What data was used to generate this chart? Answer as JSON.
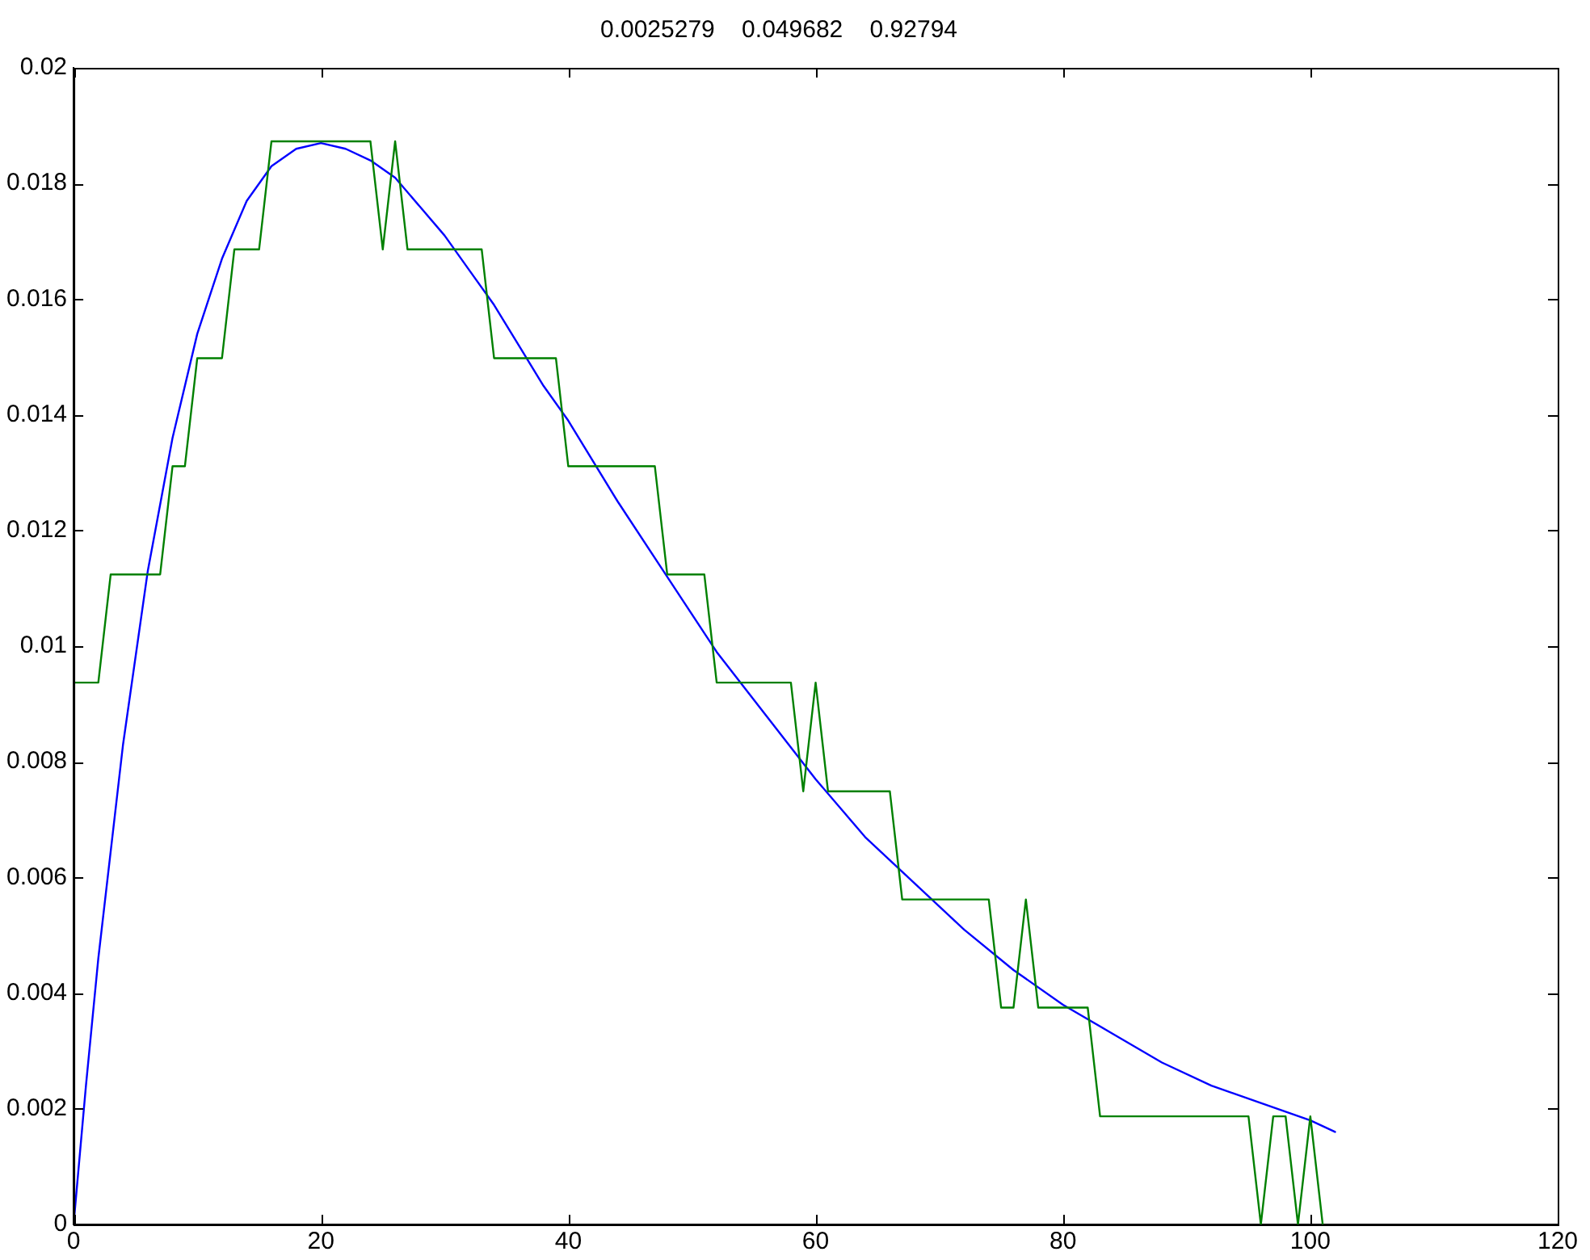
{
  "chart_data": {
    "type": "line",
    "title": "0.0025279    0.049682    0.92794",
    "xlim": [
      0,
      120
    ],
    "xticks": [
      0,
      20,
      40,
      60,
      80,
      100,
      120
    ],
    "ylim": [
      0,
      0.02
    ],
    "yticks": [
      0,
      0.002,
      0.004,
      0.006,
      0.008,
      0.01,
      0.012,
      0.014,
      0.016,
      0.018,
      0.02
    ],
    "grid": false,
    "legend": false,
    "marker": "none",
    "line_style": "solid",
    "series": [
      {
        "type": "line",
        "color": "#008000",
        "x": [
          0,
          1,
          2,
          3,
          4,
          5,
          6,
          7,
          8,
          9,
          10,
          11,
          12,
          13,
          14,
          15,
          16,
          17,
          18,
          19,
          20,
          21,
          22,
          23,
          24,
          25,
          26,
          27,
          28,
          29,
          30,
          31,
          32,
          33,
          34,
          35,
          36,
          37,
          38,
          39,
          40,
          41,
          42,
          43,
          44,
          45,
          46,
          47,
          48,
          49,
          50,
          51,
          52,
          53,
          54,
          55,
          56,
          57,
          58,
          59,
          60,
          61,
          62,
          63,
          64,
          65,
          66,
          67,
          68,
          69,
          70,
          71,
          72,
          73,
          74,
          75,
          76,
          77,
          78,
          79,
          80,
          81,
          82,
          83,
          84,
          85,
          86,
          87,
          88,
          89,
          90,
          91,
          92,
          93,
          94,
          95,
          96,
          97,
          98,
          99,
          100,
          101
        ],
        "values": [
          0.00937,
          0.00937,
          0.00937,
          0.01124,
          0.01124,
          0.01124,
          0.01124,
          0.01124,
          0.01311,
          0.01311,
          0.01498,
          0.01498,
          0.01498,
          0.01686,
          0.01686,
          0.01686,
          0.01873,
          0.01873,
          0.01873,
          0.01873,
          0.01873,
          0.01873,
          0.01873,
          0.01873,
          0.01873,
          0.01686,
          0.01873,
          0.01686,
          0.01686,
          0.01686,
          0.01686,
          0.01686,
          0.01686,
          0.01686,
          0.01498,
          0.01498,
          0.01498,
          0.01498,
          0.01498,
          0.01498,
          0.01311,
          0.01311,
          0.01311,
          0.01311,
          0.01311,
          0.01311,
          0.01311,
          0.01311,
          0.01124,
          0.01124,
          0.01124,
          0.01124,
          0.00937,
          0.00937,
          0.00937,
          0.00937,
          0.00937,
          0.00937,
          0.00937,
          0.00749,
          0.00937,
          0.00749,
          0.00749,
          0.00749,
          0.00749,
          0.00749,
          0.00749,
          0.00562,
          0.00562,
          0.00562,
          0.00562,
          0.00562,
          0.00562,
          0.00562,
          0.00562,
          0.00375,
          0.00375,
          0.00562,
          0.00375,
          0.00375,
          0.00375,
          0.00375,
          0.00375,
          0.00187,
          0.00187,
          0.00187,
          0.00187,
          0.00187,
          0.00187,
          0.00187,
          0.00187,
          0.00187,
          0.00187,
          0.00187,
          0.00187,
          0.00187,
          0,
          0.00187,
          0.00187,
          0,
          0.00187,
          0
        ]
      },
      {
        "type": "line",
        "color": "#0000ff",
        "x": [
          0,
          1,
          2,
          4,
          6,
          8,
          10,
          12,
          14,
          16,
          18,
          20,
          22,
          24,
          26,
          28,
          30,
          32,
          34,
          36,
          38,
          40,
          44,
          48,
          52,
          56,
          60,
          64,
          68,
          72,
          76,
          80,
          84,
          88,
          92,
          96,
          100,
          102
        ],
        "values": [
          0,
          0.0024,
          0.0046,
          0.0083,
          0.0113,
          0.0136,
          0.0154,
          0.0167,
          0.0177,
          0.0183,
          0.0186,
          0.0187,
          0.0186,
          0.0184,
          0.0181,
          0.0176,
          0.0171,
          0.0165,
          0.0159,
          0.0152,
          0.0145,
          0.0139,
          0.0125,
          0.0112,
          0.0099,
          0.0088,
          0.0077,
          0.0067,
          0.0059,
          0.0051,
          0.0044,
          0.0038,
          0.0033,
          0.0028,
          0.0024,
          0.0021,
          0.0018,
          0.0016
        ]
      }
    ]
  }
}
